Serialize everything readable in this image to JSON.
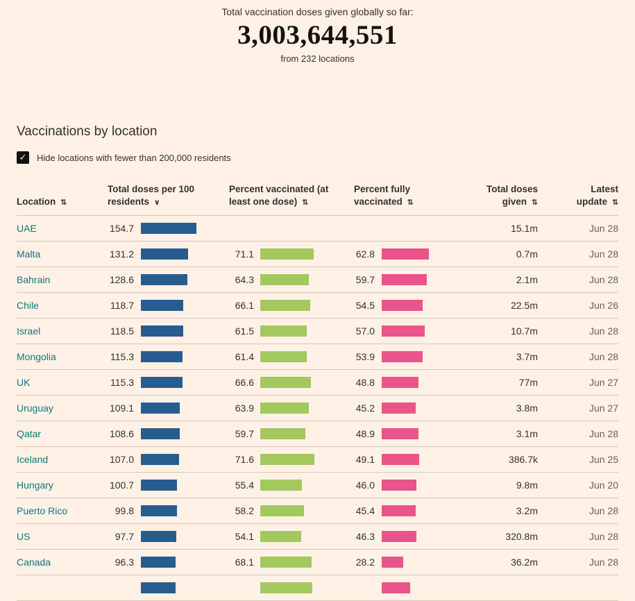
{
  "page": {
    "hero": {
      "subtitle": "Total vaccination doses given globally so far:",
      "total_doses": "3,003,644,551",
      "source_note": "from 232 locations"
    },
    "section_title": "Vaccinations by location",
    "filter": {
      "label": "Hide locations with fewer than 200,000 residents",
      "checked": true
    }
  },
  "icons": {
    "check": "✓",
    "sort_both": "⇅",
    "sort_desc": "∨"
  },
  "colors": {
    "background": "#FFF1E5",
    "bar_blue": "#275D8E",
    "bar_green": "#A3C85E",
    "bar_pink": "#E9548B",
    "link": "#0D7680",
    "divider": "#D5C8B8",
    "text": "#33302E",
    "muted": "#66605B",
    "checkbox": "#14110F"
  },
  "table": {
    "columns": [
      {
        "key": "location",
        "label": "Location",
        "sort": "none",
        "align": "left"
      },
      {
        "key": "doses_per_100",
        "label": "Total doses per 100 residents",
        "sort": "desc",
        "align": "left"
      },
      {
        "key": "pct_vaccinated",
        "label": "Percent vaccinated (at least one dose)",
        "sort": "none",
        "align": "left"
      },
      {
        "key": "pct_fully_vaccinated",
        "label": "Percent fully vaccinated",
        "sort": "none",
        "align": "left"
      },
      {
        "key": "total_doses_given",
        "label": "Total doses given",
        "sort": "none",
        "align": "right"
      },
      {
        "key": "latest_update",
        "label": "Latest update",
        "sort": "none",
        "align": "right"
      }
    ],
    "rows": [
      {
        "location": "UAE",
        "doses_per_100": "154.7",
        "pct_vaccinated": null,
        "pct_fully": null,
        "total_doses": "15.1m",
        "latest_update": "Jun 28"
      },
      {
        "location": "Malta",
        "doses_per_100": "131.2",
        "pct_vaccinated": "71.1",
        "pct_fully": "62.8",
        "total_doses": "0.7m",
        "latest_update": "Jun 28"
      },
      {
        "location": "Bahrain",
        "doses_per_100": "128.6",
        "pct_vaccinated": "64.3",
        "pct_fully": "59.7",
        "total_doses": "2.1m",
        "latest_update": "Jun 28"
      },
      {
        "location": "Chile",
        "doses_per_100": "118.7",
        "pct_vaccinated": "66.1",
        "pct_fully": "54.5",
        "total_doses": "22.5m",
        "latest_update": "Jun 26"
      },
      {
        "location": "Israel",
        "doses_per_100": "118.5",
        "pct_vaccinated": "61.5",
        "pct_fully": "57.0",
        "total_doses": "10.7m",
        "latest_update": "Jun 28"
      },
      {
        "location": "Mongolia",
        "doses_per_100": "115.3",
        "pct_vaccinated": "61.4",
        "pct_fully": "53.9",
        "total_doses": "3.7m",
        "latest_update": "Jun 28"
      },
      {
        "location": "UK",
        "doses_per_100": "115.3",
        "pct_vaccinated": "66.6",
        "pct_fully": "48.8",
        "total_doses": "77m",
        "latest_update": "Jun 27"
      },
      {
        "location": "Uruguay",
        "doses_per_100": "109.1",
        "pct_vaccinated": "63.9",
        "pct_fully": "45.2",
        "total_doses": "3.8m",
        "latest_update": "Jun 27"
      },
      {
        "location": "Qatar",
        "doses_per_100": "108.6",
        "pct_vaccinated": "59.7",
        "pct_fully": "48.9",
        "total_doses": "3.1m",
        "latest_update": "Jun 28"
      },
      {
        "location": "Iceland",
        "doses_per_100": "107.0",
        "pct_vaccinated": "71.6",
        "pct_fully": "49.1",
        "total_doses": "386.7k",
        "latest_update": "Jun 25"
      },
      {
        "location": "Hungary",
        "doses_per_100": "100.7",
        "pct_vaccinated": "55.4",
        "pct_fully": "46.0",
        "total_doses": "9.8m",
        "latest_update": "Jun 20"
      },
      {
        "location": "Puerto Rico",
        "doses_per_100": "99.8",
        "pct_vaccinated": "58.2",
        "pct_fully": "45.4",
        "total_doses": "3.2m",
        "latest_update": "Jun 28"
      },
      {
        "location": "US",
        "doses_per_100": "97.7",
        "pct_vaccinated": "54.1",
        "pct_fully": "46.3",
        "total_doses": "320.8m",
        "latest_update": "Jun 28"
      },
      {
        "location": "Canada",
        "doses_per_100": "96.3",
        "pct_vaccinated": "68.1",
        "pct_fully": "28.2",
        "total_doses": "36.2m",
        "latest_update": "Jun 28"
      }
    ],
    "partial_row": {
      "location": "",
      "doses_per_100": "95.9",
      "pct_vaccinated": "69.0",
      "pct_fully": "37.5",
      "total_doses": "",
      "latest_update": ""
    }
  }
}
